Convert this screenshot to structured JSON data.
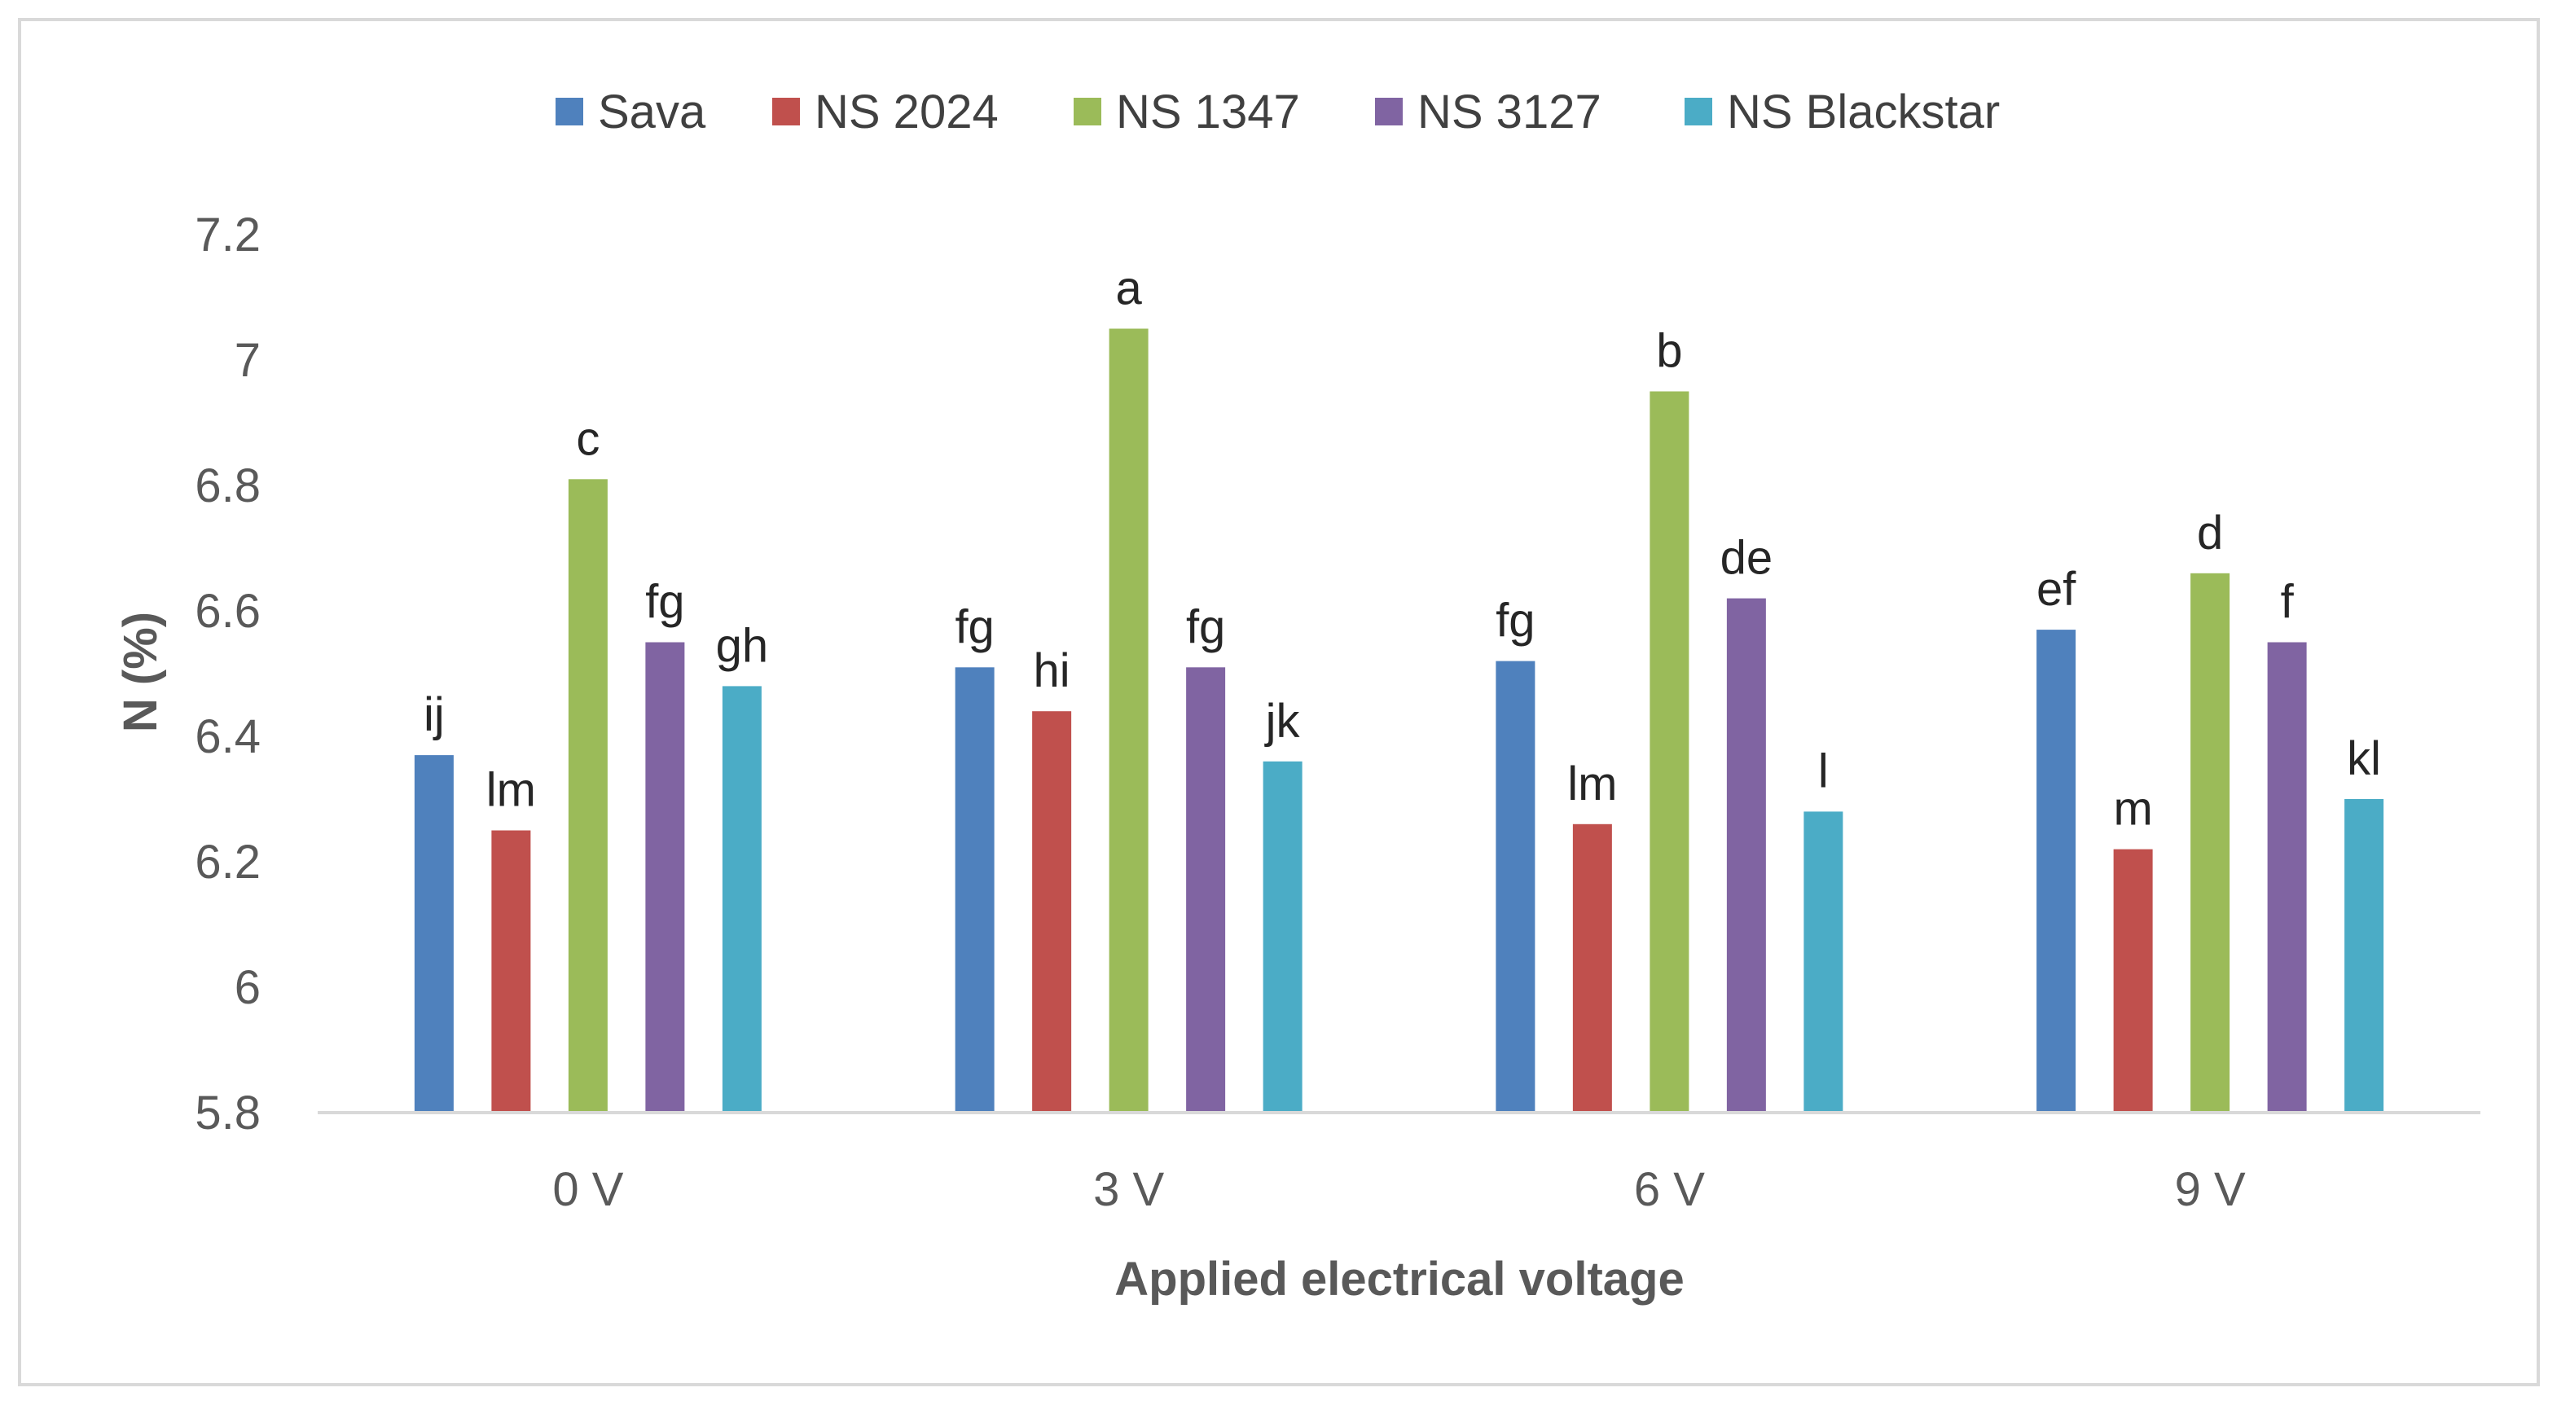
{
  "chart_data": {
    "type": "bar",
    "title": "",
    "xlabel": "Applied electrical voltage",
    "ylabel": "N (%)",
    "ylim": [
      5.8,
      7.2
    ],
    "yticks": [
      5.8,
      6,
      6.2,
      6.4,
      6.6,
      6.8,
      7,
      7.2
    ],
    "ytick_labels": [
      "5.8",
      "6",
      "6.2",
      "6.4",
      "6.6",
      "6.8",
      "7",
      "7.2"
    ],
    "categories": [
      "0 V",
      "3 V",
      "6 V",
      "9 V"
    ],
    "grid": false,
    "legend_position": "top",
    "series": [
      {
        "name": "Sava",
        "color": "#4f81bd",
        "values": [
          6.37,
          6.51,
          6.52,
          6.57
        ],
        "labels": [
          "ij",
          "fg",
          "fg",
          "ef"
        ]
      },
      {
        "name": "NS 2024",
        "color": "#c0504d",
        "values": [
          6.25,
          6.44,
          6.26,
          6.22
        ],
        "labels": [
          "lm",
          "hi",
          "lm",
          "m"
        ]
      },
      {
        "name": "NS 1347",
        "color": "#9bbb59",
        "values": [
          6.81,
          7.05,
          6.95,
          6.66
        ],
        "labels": [
          "c",
          "a",
          "b",
          "d"
        ]
      },
      {
        "name": "NS 3127",
        "color": "#8064a2",
        "values": [
          6.55,
          6.51,
          6.62,
          6.55
        ],
        "labels": [
          "fg",
          "fg",
          "de",
          "f"
        ]
      },
      {
        "name": "NS Blackstar",
        "color": "#4bacc6",
        "values": [
          6.48,
          6.36,
          6.28,
          6.3
        ],
        "labels": [
          "gh",
          "jk",
          "l",
          "kl"
        ]
      }
    ]
  }
}
